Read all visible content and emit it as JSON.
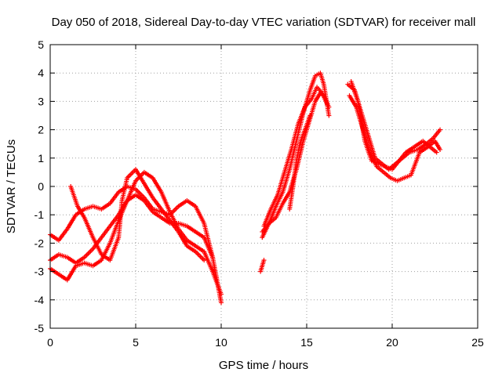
{
  "chart_data": {
    "type": "scatter",
    "title": "Day 050 of 2018, Sidereal Day-to-day VTEC variation (SDTVAR) for receiver mall",
    "xlabel": "GPS time / hours",
    "ylabel": "SDTVAR / TECUs",
    "xlim": [
      0,
      25
    ],
    "ylim": [
      -5,
      5
    ],
    "xticks": [
      0,
      5,
      10,
      15,
      20,
      25
    ],
    "yticks": [
      -5,
      -4,
      -3,
      -2,
      -1,
      0,
      1,
      2,
      3,
      4,
      5
    ],
    "grid": true,
    "marker": "+",
    "color": "#ff0000",
    "series": [
      {
        "name": "track-a",
        "x": [
          0.0,
          0.5,
          1.0,
          1.5,
          2.0,
          2.5,
          3.0,
          3.5,
          4.0,
          4.5,
          5.0,
          5.5,
          6.0,
          6.5,
          7.0,
          7.5,
          8.0,
          8.5,
          9.0,
          9.5,
          10.0
        ],
        "y": [
          -1.7,
          -1.9,
          -1.5,
          -1.0,
          -0.8,
          -0.7,
          -0.8,
          -0.6,
          -0.2,
          0.0,
          -0.1,
          -0.4,
          -0.8,
          -0.9,
          -1.0,
          -0.7,
          -0.5,
          -0.7,
          -1.3,
          -2.5,
          -4.1
        ]
      },
      {
        "name": "track-b",
        "x": [
          0.0,
          0.5,
          1.0,
          1.5,
          2.0,
          2.5,
          3.0,
          3.5,
          4.0,
          4.5,
          5.0,
          5.5,
          6.0,
          6.5,
          7.0,
          7.5,
          8.0,
          8.5,
          9.0,
          9.5
        ],
        "y": [
          -2.6,
          -2.4,
          -2.5,
          -2.7,
          -2.5,
          -2.2,
          -1.8,
          -1.4,
          -1.0,
          -0.5,
          -0.3,
          -0.5,
          -0.9,
          -1.1,
          -1.3,
          -1.3,
          -1.4,
          -1.6,
          -1.8,
          -2.5
        ]
      },
      {
        "name": "track-c",
        "x": [
          0.0,
          0.5,
          1.0,
          1.5,
          2.0,
          2.5,
          3.0,
          3.5,
          4.0,
          4.5,
          5.0,
          5.5,
          6.0,
          6.5,
          7.0,
          7.5,
          8.0,
          8.5,
          9.0,
          9.5,
          10.0
        ],
        "y": [
          -2.9,
          -3.1,
          -3.3,
          -2.8,
          -2.7,
          -2.8,
          -2.6,
          -2.0,
          -1.2,
          -0.5,
          0.2,
          0.5,
          0.3,
          -0.2,
          -0.9,
          -1.5,
          -1.9,
          -2.1,
          -2.3,
          -3.0,
          -3.8
        ]
      },
      {
        "name": "track-d",
        "x": [
          1.2,
          1.6,
          2.0,
          2.5,
          3.0,
          3.5,
          4.0,
          4.2,
          4.5,
          5.0,
          5.5,
          6.0,
          6.5,
          7.0,
          7.5,
          8.0,
          8.5,
          9.0
        ],
        "y": [
          0.0,
          -0.7,
          -1.1,
          -1.8,
          -2.4,
          -2.6,
          -1.8,
          -0.5,
          0.3,
          0.6,
          0.1,
          -0.4,
          -0.8,
          -1.2,
          -1.6,
          -2.1,
          -2.3,
          -2.6
        ]
      },
      {
        "name": "track-e",
        "x": [
          12.4,
          12.8,
          13.2,
          13.6,
          14.0,
          14.4,
          14.8,
          15.2,
          15.5,
          15.8,
          16.0,
          16.3
        ],
        "y": [
          -1.8,
          -1.3,
          -0.7,
          -0.2,
          0.6,
          1.6,
          2.6,
          3.4,
          3.9,
          4.0,
          3.6,
          2.5
        ]
      },
      {
        "name": "track-f",
        "x": [
          12.4,
          12.8,
          13.2,
          13.6,
          14.0,
          14.4,
          14.8,
          15.2,
          15.5,
          15.8,
          16.0,
          16.3
        ],
        "y": [
          -1.6,
          -1.3,
          -1.1,
          -0.6,
          -0.2,
          0.6,
          1.6,
          2.4,
          3.0,
          3.3,
          3.2,
          2.8
        ]
      },
      {
        "name": "track-g",
        "x": [
          12.5,
          12.9,
          13.3,
          13.7,
          14.1,
          14.5,
          14.9,
          15.3,
          15.6,
          15.9,
          16.2
        ],
        "y": [
          -1.4,
          -0.8,
          -0.3,
          0.5,
          1.3,
          2.2,
          2.8,
          3.1,
          3.5,
          3.3,
          2.9
        ]
      },
      {
        "name": "track-h",
        "x": [
          14.0,
          14.2,
          14.4,
          14.6,
          14.9,
          15.2
        ],
        "y": [
          -0.8,
          0.0,
          0.9,
          1.5,
          2.0,
          2.5
        ]
      },
      {
        "name": "track-i",
        "x": [
          12.3,
          12.5
        ],
        "y": [
          -3.0,
          -2.6
        ]
      },
      {
        "name": "track-j",
        "x": [
          17.4,
          17.8,
          18.2,
          18.6,
          19.0,
          19.4,
          19.8,
          20.2,
          20.6,
          21.0,
          21.5,
          22.0,
          22.4,
          22.8
        ],
        "y": [
          3.6,
          3.4,
          2.6,
          1.8,
          1.0,
          0.8,
          0.6,
          0.8,
          1.0,
          1.2,
          1.3,
          1.5,
          1.7,
          2.0
        ]
      },
      {
        "name": "track-k",
        "x": [
          17.5,
          17.9,
          18.3,
          18.7,
          19.1,
          19.5,
          19.9,
          20.3,
          20.7,
          21.1,
          21.6,
          22.1,
          22.5,
          22.8
        ],
        "y": [
          3.2,
          2.8,
          2.0,
          1.2,
          0.7,
          0.5,
          0.3,
          0.2,
          0.3,
          0.4,
          1.2,
          1.4,
          1.6,
          1.3
        ]
      },
      {
        "name": "track-l",
        "x": [
          17.6,
          18.0,
          18.4,
          18.8,
          19.2,
          19.6,
          20.0,
          20.4,
          20.8,
          21.3,
          21.8,
          22.2,
          22.6
        ],
        "y": [
          3.7,
          3.0,
          1.6,
          0.9,
          0.8,
          0.7,
          0.6,
          0.9,
          1.2,
          1.4,
          1.6,
          1.4,
          1.2
        ]
      }
    ]
  }
}
